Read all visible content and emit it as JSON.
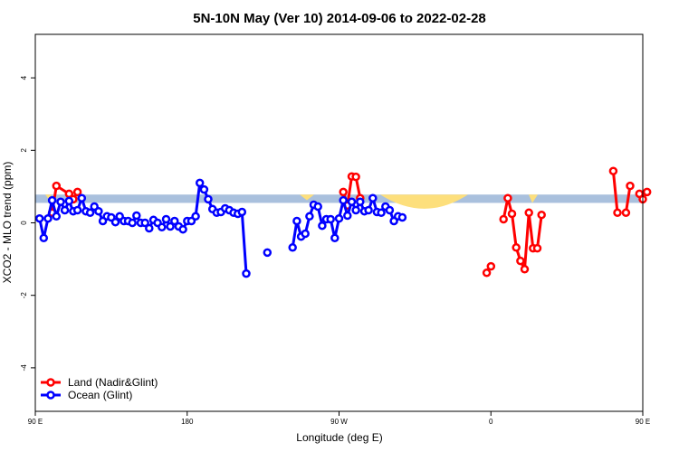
{
  "chart_data": {
    "type": "line",
    "title": "5N-10N May (Ver 10)   2014-09-06 to 2022-02-28",
    "xlabel": "Longitude (deg E)",
    "ylabel": "XCO2 - MLO trend (ppm)",
    "xlim": [
      90,
      450
    ],
    "ylim": [
      -5.2,
      5.2
    ],
    "xticks": [
      {
        "value": 90,
        "label": "90 E"
      },
      {
        "value": 180,
        "label": "180"
      },
      {
        "value": 270,
        "label": "90 W"
      },
      {
        "value": 360,
        "label": "0"
      },
      {
        "value": 450,
        "label": "90 E"
      },
      {
        "value": 540,
        "label": "180"
      }
    ],
    "yticks": [
      {
        "value": -4,
        "label": "-4"
      },
      {
        "value": -2,
        "label": "-2"
      },
      {
        "value": 0,
        "label": "0"
      },
      {
        "value": 2,
        "label": "2"
      },
      {
        "value": 4,
        "label": "4"
      }
    ],
    "band": {
      "ymin": 0.55,
      "ymax": 0.78,
      "color": "#a9c0dd"
    },
    "land_patch_color": "#fddf7c",
    "grid": false,
    "legend_position": "bottom-left",
    "series": [
      {
        "name": "Land (Nadir&Glint)",
        "color": "#ff0000",
        "segments": [
          [
            [
              100,
              0.28
            ],
            [
              102.5,
              1.02
            ],
            [
              110,
              0.8
            ],
            [
              112.5,
              0.65
            ],
            [
              115,
              0.85
            ]
          ],
          [
            [
              272.5,
              0.85
            ],
            [
              275,
              0.48
            ],
            [
              277.5,
              1.28
            ],
            [
              280,
              1.27
            ],
            [
              282.5,
              0.68
            ]
          ],
          [
            [
              357.5,
              -1.38
            ],
            [
              360,
              -1.2
            ]
          ],
          [
            [
              367.5,
              0.1
            ],
            [
              370,
              0.68
            ],
            [
              372.5,
              0.25
            ],
            [
              375,
              -0.68
            ],
            [
              377.5,
              -1.05
            ],
            [
              380,
              -1.28
            ],
            [
              382.5,
              0.28
            ],
            [
              385,
              -0.7
            ],
            [
              387.5,
              -0.7
            ],
            [
              390,
              0.22
            ]
          ],
          [
            [
              432.5,
              1.43
            ],
            [
              435,
              0.28
            ]
          ],
          [
            [
              440,
              0.28
            ],
            [
              442.5,
              1.02
            ]
          ],
          [
            [
              448,
              0.8
            ],
            [
              450,
              0.65
            ],
            [
              452.5,
              0.85
            ]
          ]
        ]
      },
      {
        "name": "Ocean (Glint)",
        "color": "#0000ff",
        "segments": [
          [
            [
              92.5,
              0.12
            ],
            [
              95,
              -0.42
            ],
            [
              97.5,
              0.12
            ],
            [
              100,
              0.62
            ],
            [
              102.5,
              0.18
            ],
            [
              105,
              0.58
            ],
            [
              107.5,
              0.35
            ],
            [
              110,
              0.6
            ],
            [
              112.5,
              0.32
            ],
            [
              115,
              0.35
            ],
            [
              117.5,
              0.68
            ],
            [
              120,
              0.32
            ],
            [
              122.5,
              0.28
            ],
            [
              125,
              0.45
            ],
            [
              127.5,
              0.32
            ],
            [
              130,
              0.05
            ],
            [
              132.5,
              0.18
            ],
            [
              135,
              0.15
            ],
            [
              137.5,
              0.02
            ],
            [
              140,
              0.18
            ],
            [
              142.5,
              0.05
            ],
            [
              145,
              0.05
            ],
            [
              147.5,
              0.0
            ],
            [
              150,
              0.2
            ],
            [
              152.5,
              0.0
            ],
            [
              155,
              0.0
            ],
            [
              157.5,
              -0.15
            ],
            [
              160,
              0.08
            ],
            [
              162.5,
              0.0
            ],
            [
              165,
              -0.12
            ],
            [
              167.5,
              0.1
            ],
            [
              170,
              -0.1
            ],
            [
              172.5,
              0.05
            ],
            [
              175,
              -0.1
            ],
            [
              177.5,
              -0.18
            ],
            [
              180,
              0.05
            ],
            [
              182.5,
              0.05
            ],
            [
              185,
              0.18
            ],
            [
              187.5,
              1.1
            ],
            [
              190,
              0.92
            ],
            [
              192.5,
              0.65
            ],
            [
              195,
              0.38
            ],
            [
              197.5,
              0.28
            ],
            [
              200,
              0.3
            ],
            [
              202.5,
              0.4
            ],
            [
              205,
              0.35
            ],
            [
              207.5,
              0.28
            ],
            [
              210,
              0.25
            ],
            [
              212.5,
              0.3
            ],
            [
              215,
              -1.4
            ]
          ],
          [
            [
              227.5,
              -0.82
            ]
          ],
          [
            [
              242.5,
              -0.68
            ],
            [
              245,
              0.05
            ],
            [
              247.5,
              -0.38
            ],
            [
              250,
              -0.3
            ],
            [
              252.5,
              0.18
            ],
            [
              255,
              0.5
            ],
            [
              257.5,
              0.45
            ],
            [
              260,
              -0.08
            ],
            [
              262.5,
              0.1
            ],
            [
              265,
              0.1
            ],
            [
              267.5,
              -0.42
            ],
            [
              270,
              0.12
            ],
            [
              272.5,
              0.62
            ],
            [
              275,
              0.2
            ],
            [
              277.5,
              0.58
            ],
            [
              280,
              0.35
            ],
            [
              282.5,
              0.58
            ],
            [
              285,
              0.32
            ],
            [
              287.5,
              0.35
            ],
            [
              290,
              0.68
            ],
            [
              292.5,
              0.3
            ],
            [
              295,
              0.28
            ],
            [
              297.5,
              0.45
            ],
            [
              300,
              0.35
            ],
            [
              302.5,
              0.05
            ],
            [
              305,
              0.18
            ],
            [
              307.5,
              0.15
            ]
          ]
        ]
      }
    ]
  }
}
